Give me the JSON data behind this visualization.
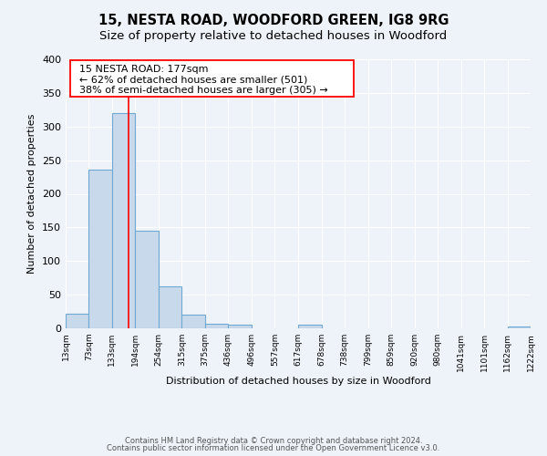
{
  "title": "15, NESTA ROAD, WOODFORD GREEN, IG8 9RG",
  "subtitle": "Size of property relative to detached houses in Woodford",
  "xlabel": "Distribution of detached houses by size in Woodford",
  "ylabel": "Number of detached properties",
  "bin_edges": [
    13,
    73,
    133,
    194,
    254,
    315,
    375,
    436,
    496,
    557,
    617,
    678,
    738,
    799,
    859,
    920,
    980,
    1041,
    1101,
    1162,
    1222
  ],
  "bar_heights": [
    22,
    236,
    320,
    145,
    63,
    21,
    7,
    5,
    0,
    0,
    5,
    0,
    0,
    0,
    0,
    0,
    0,
    0,
    0,
    3
  ],
  "bar_color": "#c9d9ec",
  "bar_edge_color": "#6fa8d0",
  "property_line_x": 177,
  "property_line_color": "red",
  "annotation_line1": "15 NESTA ROAD: 177sqm",
  "annotation_line2": "← 62% of detached houses are smaller (501)",
  "annotation_line3": "38% of semi-detached houses are larger (305) →",
  "annotation_box_edge_color": "red",
  "annotation_text_fontsize": 8,
  "ylim": [
    0,
    400
  ],
  "yticks": [
    0,
    50,
    100,
    150,
    200,
    250,
    300,
    350,
    400
  ],
  "tick_labels": [
    "13sqm",
    "73sqm",
    "133sqm",
    "194sqm",
    "254sqm",
    "315sqm",
    "375sqm",
    "436sqm",
    "496sqm",
    "557sqm",
    "617sqm",
    "678sqm",
    "738sqm",
    "799sqm",
    "859sqm",
    "920sqm",
    "980sqm",
    "1041sqm",
    "1101sqm",
    "1162sqm",
    "1222sqm"
  ],
  "footer_line1": "Contains HM Land Registry data © Crown copyright and database right 2024.",
  "footer_line2": "Contains public sector information licensed under the Open Government Licence v3.0.",
  "bg_color": "#eef3f9",
  "grid_color": "white",
  "title_fontsize": 10.5,
  "subtitle_fontsize": 9.5,
  "xlabel_fontsize": 8,
  "ylabel_fontsize": 8,
  "ytick_fontsize": 8,
  "xtick_fontsize": 6.5
}
